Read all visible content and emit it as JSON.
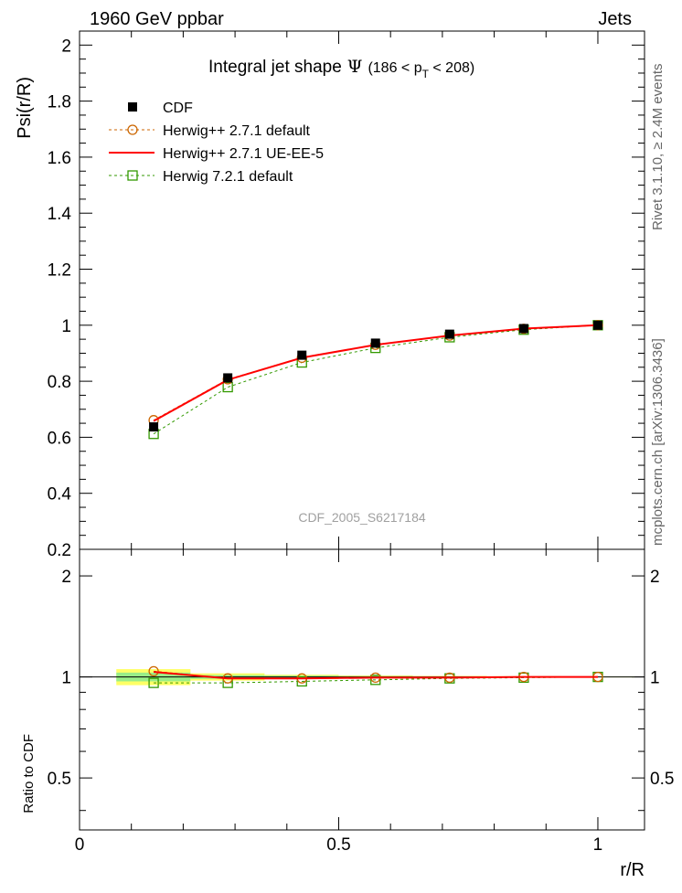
{
  "header": {
    "left": "1960 GeV ppbar",
    "right": "Jets",
    "title_main": "Integral jet shape",
    "title_psi": "Ψ",
    "title_range_pre": "(186 < p",
    "title_range_sub": "T",
    "title_range_post": " < 208)"
  },
  "side": {
    "rivet": "Rivet 3.1.10, ≥ 2.4M events",
    "mcplots": "mcplots.cern.ch [arXiv:1306.3436]"
  },
  "watermark": "CDF_2005_S6217184",
  "axes": {
    "ylabel_main": "Psi(r/R)",
    "ylabel_ratio": "Ratio to CDF",
    "xlabel": "r/R",
    "main_yticks": [
      "0.2",
      "0.4",
      "0.6",
      "0.8",
      "1",
      "1.2",
      "1.4",
      "1.6",
      "1.8",
      "2"
    ],
    "ratio_yticks": [
      "0.5",
      "1",
      "2"
    ],
    "xticks": [
      "0",
      "0.5",
      "1"
    ]
  },
  "legend": [
    {
      "label": "CDF",
      "color": "#000000",
      "marker": "filled-square",
      "line": "none"
    },
    {
      "label": "Herwig++ 2.7.1 default",
      "color": "#cc6600",
      "marker": "open-circle",
      "line": "dashed"
    },
    {
      "label": "Herwig++ 2.7.1 UE-EE-5",
      "color": "#ff0000",
      "marker": "none",
      "line": "solid"
    },
    {
      "label": "Herwig 7.2.1 default",
      "color": "#339900",
      "marker": "open-square",
      "line": "dashed"
    }
  ],
  "chart_data": {
    "type": "line",
    "xlabel": "r/R",
    "ylabel": "Psi(r/R)",
    "xlim": [
      0,
      1.09
    ],
    "ylim": [
      0.2,
      2.05
    ],
    "ratio_ylim": [
      0.35,
      2.4
    ],
    "ratio_scale": "log",
    "x": [
      0.143,
      0.286,
      0.429,
      0.571,
      0.714,
      0.857,
      1.0
    ],
    "series": [
      {
        "name": "CDF",
        "values": [
          0.637,
          0.812,
          0.893,
          0.936,
          0.968,
          0.988,
          1.0
        ],
        "ratio": [
          1,
          1,
          1,
          1,
          1,
          1,
          1
        ]
      },
      {
        "name": "Herwig++ 2.7.1 default",
        "values": [
          0.661,
          0.807,
          0.884,
          0.93,
          0.963,
          0.987,
          1.0
        ],
        "ratio": [
          1.04,
          0.99,
          0.99,
          0.995,
          0.995,
          1.0,
          1.0
        ]
      },
      {
        "name": "Herwig++ 2.7.1 UE-EE-5",
        "values": [
          0.658,
          0.805,
          0.884,
          0.93,
          0.963,
          0.988,
          1.0
        ],
        "ratio": [
          1.035,
          0.99,
          0.99,
          0.995,
          0.995,
          1.0,
          1.0
        ]
      },
      {
        "name": "Herwig 7.2.1 default",
        "values": [
          0.612,
          0.779,
          0.867,
          0.919,
          0.957,
          0.984,
          1.0
        ],
        "ratio": [
          0.96,
          0.96,
          0.97,
          0.98,
          0.99,
          0.995,
          1.0
        ]
      }
    ],
    "ratio_band": {
      "x_edges": [
        0.071,
        0.214,
        0.357,
        0.5,
        0.643,
        0.786,
        0.929,
        1.071
      ],
      "stat_half": [
        0.03,
        0.013,
        0.009,
        0.006,
        0.004,
        0.003,
        0.002
      ],
      "total_half": [
        0.055,
        0.025,
        0.015,
        0.01,
        0.007,
        0.005,
        0.003
      ]
    }
  }
}
